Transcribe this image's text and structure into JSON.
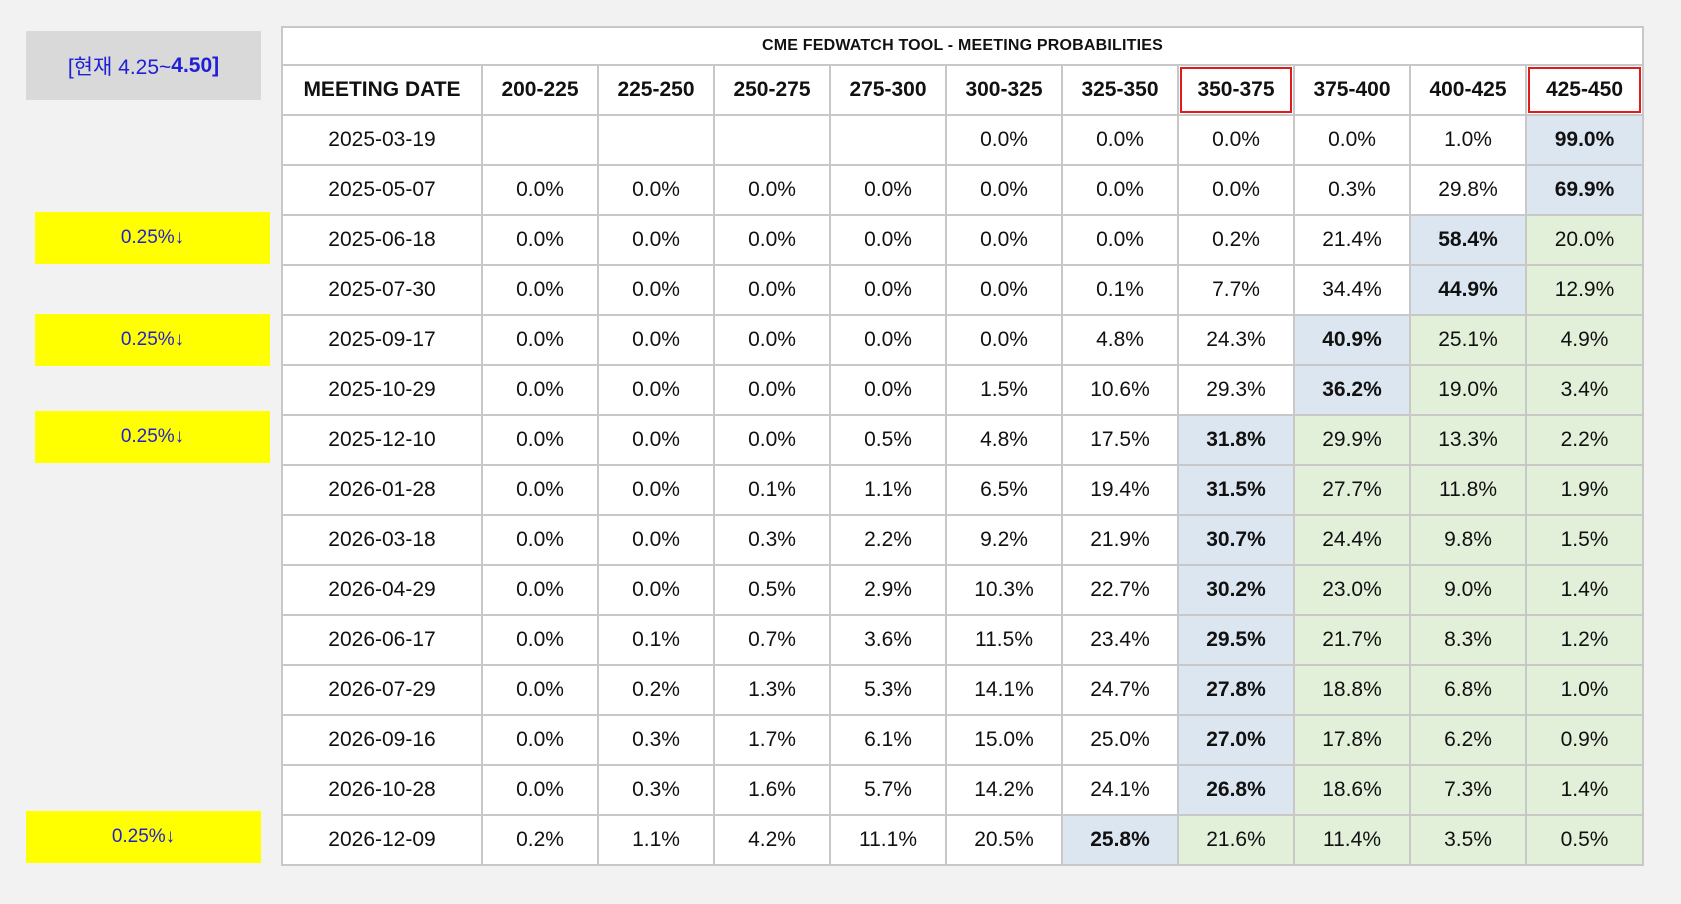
{
  "current_rate": {
    "prefix": "[현재 4.25~",
    "suffix": "4.50]"
  },
  "cut_badges": [
    "0.25%↓",
    "0.25%↓",
    "0.25%↓",
    "0.25%↓"
  ],
  "table": {
    "title": "CME FEDWATCH TOOL - MEETING PROBABILITIES",
    "date_header": "MEETING DATE",
    "columns": [
      "200-225",
      "225-250",
      "250-275",
      "275-300",
      "300-325",
      "325-350",
      "350-375",
      "375-400",
      "400-425",
      "425-450"
    ],
    "highlighted_columns": [
      "350-375",
      "425-450"
    ],
    "colors": {
      "highest": "#dce6f1",
      "cumulative": "#e2efd9",
      "highlight_border": "#e01b1b",
      "badge": "#ffff00",
      "badge_text": "#1f1fd6"
    },
    "rows": [
      {
        "date": "2025-03-19",
        "values": [
          "",
          "",
          "",
          "",
          "0.0%",
          "0.0%",
          "0.0%",
          "0.0%",
          "1.0%",
          "99.0%"
        ],
        "max_index": 9,
        "green_from": 10
      },
      {
        "date": "2025-05-07",
        "values": [
          "0.0%",
          "0.0%",
          "0.0%",
          "0.0%",
          "0.0%",
          "0.0%",
          "0.0%",
          "0.3%",
          "29.8%",
          "69.9%"
        ],
        "max_index": 9,
        "green_from": 10
      },
      {
        "date": "2025-06-18",
        "values": [
          "0.0%",
          "0.0%",
          "0.0%",
          "0.0%",
          "0.0%",
          "0.0%",
          "0.2%",
          "21.4%",
          "58.4%",
          "20.0%"
        ],
        "max_index": 8,
        "green_from": 9
      },
      {
        "date": "2025-07-30",
        "values": [
          "0.0%",
          "0.0%",
          "0.0%",
          "0.0%",
          "0.0%",
          "0.1%",
          "7.7%",
          "34.4%",
          "44.9%",
          "12.9%"
        ],
        "max_index": 8,
        "green_from": 9
      },
      {
        "date": "2025-09-17",
        "values": [
          "0.0%",
          "0.0%",
          "0.0%",
          "0.0%",
          "0.0%",
          "4.8%",
          "24.3%",
          "40.9%",
          "25.1%",
          "4.9%"
        ],
        "max_index": 7,
        "green_from": 8
      },
      {
        "date": "2025-10-29",
        "values": [
          "0.0%",
          "0.0%",
          "0.0%",
          "0.0%",
          "1.5%",
          "10.6%",
          "29.3%",
          "36.2%",
          "19.0%",
          "3.4%"
        ],
        "max_index": 7,
        "green_from": 8
      },
      {
        "date": "2025-12-10",
        "values": [
          "0.0%",
          "0.0%",
          "0.0%",
          "0.5%",
          "4.8%",
          "17.5%",
          "31.8%",
          "29.9%",
          "13.3%",
          "2.2%"
        ],
        "max_index": 6,
        "green_from": 7
      },
      {
        "date": "2026-01-28",
        "values": [
          "0.0%",
          "0.0%",
          "0.1%",
          "1.1%",
          "6.5%",
          "19.4%",
          "31.5%",
          "27.7%",
          "11.8%",
          "1.9%"
        ],
        "max_index": 6,
        "green_from": 7
      },
      {
        "date": "2026-03-18",
        "values": [
          "0.0%",
          "0.0%",
          "0.3%",
          "2.2%",
          "9.2%",
          "21.9%",
          "30.7%",
          "24.4%",
          "9.8%",
          "1.5%"
        ],
        "max_index": 6,
        "green_from": 7
      },
      {
        "date": "2026-04-29",
        "values": [
          "0.0%",
          "0.0%",
          "0.5%",
          "2.9%",
          "10.3%",
          "22.7%",
          "30.2%",
          "23.0%",
          "9.0%",
          "1.4%"
        ],
        "max_index": 6,
        "green_from": 7
      },
      {
        "date": "2026-06-17",
        "values": [
          "0.0%",
          "0.1%",
          "0.7%",
          "3.6%",
          "11.5%",
          "23.4%",
          "29.5%",
          "21.7%",
          "8.3%",
          "1.2%"
        ],
        "max_index": 6,
        "green_from": 7
      },
      {
        "date": "2026-07-29",
        "values": [
          "0.0%",
          "0.2%",
          "1.3%",
          "5.3%",
          "14.1%",
          "24.7%",
          "27.8%",
          "18.8%",
          "6.8%",
          "1.0%"
        ],
        "max_index": 6,
        "green_from": 7
      },
      {
        "date": "2026-09-16",
        "values": [
          "0.0%",
          "0.3%",
          "1.7%",
          "6.1%",
          "15.0%",
          "25.0%",
          "27.0%",
          "17.8%",
          "6.2%",
          "0.9%"
        ],
        "max_index": 6,
        "green_from": 7
      },
      {
        "date": "2026-10-28",
        "values": [
          "0.0%",
          "0.3%",
          "1.6%",
          "5.7%",
          "14.2%",
          "24.1%",
          "26.8%",
          "18.6%",
          "7.3%",
          "1.4%"
        ],
        "max_index": 6,
        "green_from": 7
      },
      {
        "date": "2026-12-09",
        "values": [
          "0.2%",
          "1.1%",
          "4.2%",
          "11.1%",
          "20.5%",
          "25.8%",
          "21.6%",
          "11.4%",
          "3.5%",
          "0.5%"
        ],
        "max_index": 5,
        "green_from": 6
      }
    ]
  }
}
